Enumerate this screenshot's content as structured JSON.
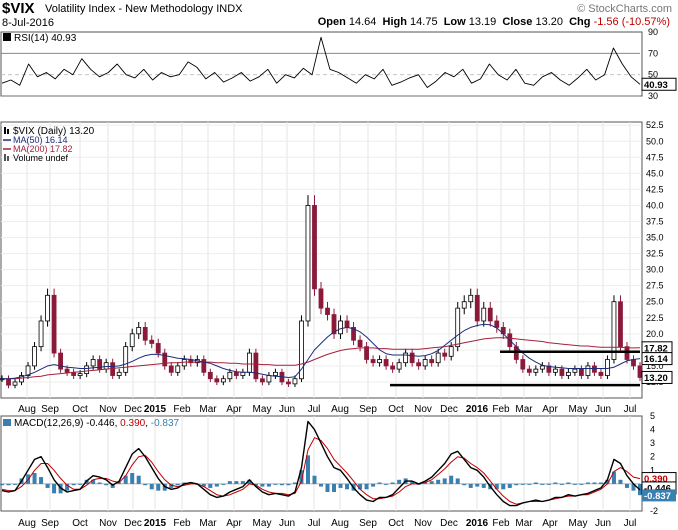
{
  "header": {
    "symbol": "$VIX",
    "name": "Volatility Index - New Methodology",
    "exchange": "INDX",
    "brand": "© StockCharts.com",
    "date": "8-Jul-2016",
    "open_label": "Open",
    "open": "14.64",
    "high_label": "High",
    "high": "14.75",
    "low_label": "Low",
    "low": "13.19",
    "close_label": "Close",
    "close": "13.20",
    "chg_label": "Chg",
    "chg": "-1.56 (-10.57%)"
  },
  "x_labels": [
    "Aug",
    "Sep",
    "Oct",
    "Nov",
    "Dec",
    "2015",
    "Feb",
    "Mar",
    "Apr",
    "May",
    "Jun",
    "Jul",
    "Aug",
    "Sep",
    "Oct",
    "Nov",
    "Dec",
    "2016",
    "Feb",
    "Mar",
    "Apr",
    "May",
    "Jun",
    "Jul"
  ],
  "colors": {
    "price_up": "#000000",
    "price_down": "#8b1a3a",
    "ma50": "#1c2d7a",
    "ma200": "#a5203c",
    "macd": "#000000",
    "signal": "#c00000",
    "histogram": "#3a7fb0",
    "rsi": "#000000"
  },
  "chart_data": [
    {
      "type": "line",
      "name": "rsi",
      "legend": "RSI(14) 40.93",
      "ylim": [
        30,
        90
      ],
      "y_ticks": [
        "90",
        "70",
        "50",
        "30"
      ],
      "reference_lines": [
        70,
        30
      ],
      "last_value": "40.93",
      "series": [
        {
          "values": [
            42,
            45,
            40,
            60,
            48,
            52,
            46,
            55,
            50,
            65,
            55,
            48,
            52,
            60,
            50,
            47,
            55,
            45,
            52,
            48,
            50,
            62,
            57,
            46,
            52,
            43,
            47,
            52,
            44,
            48,
            55,
            42,
            50,
            47,
            56,
            50,
            85,
            55,
            52,
            47,
            42,
            50,
            46,
            55,
            40,
            43,
            47,
            50,
            38,
            44,
            52,
            48,
            55,
            42,
            46,
            60,
            50,
            45,
            55,
            42,
            40,
            48,
            52,
            45,
            40,
            47,
            55,
            45,
            50,
            75,
            60,
            48,
            40.93
          ]
        }
      ]
    },
    {
      "type": "candlestick",
      "name": "price",
      "legend": [
        "$VIX (Daily) 13.20",
        "MA(50) 16.14",
        "MA(200) 17.82",
        "Volume undef"
      ],
      "ylim": [
        10,
        53
      ],
      "y_ticks": [
        "52.5",
        "50.0",
        "47.5",
        "45.0",
        "42.5",
        "40.0",
        "37.5",
        "35.0",
        "32.5",
        "30.0",
        "27.5",
        "25.0",
        "22.5",
        "20.0",
        "17.5",
        "15.0",
        "12.5"
      ],
      "last_labels": {
        "ma200": "17.82",
        "ma50": "16.14",
        "close": "13.20"
      },
      "series": [
        {
          "name": "close",
          "values": [
            13.0,
            12.0,
            12.5,
            13.5,
            15.0,
            18.0,
            22.0,
            26.0,
            17.0,
            14.5,
            14.0,
            13.5,
            13.8,
            15.0,
            16.0,
            14.5,
            15.5,
            13.5,
            14.0,
            18.0,
            20.0,
            21.0,
            19.0,
            18.5,
            17.0,
            15.0,
            14.0,
            15.0,
            16.0,
            15.5,
            16.0,
            14.0,
            13.0,
            12.5,
            13.0,
            14.0,
            13.5,
            14.0,
            17.0,
            13.0,
            12.5,
            13.5,
            14.0,
            12.5,
            12.2,
            13.0,
            22.0,
            40.0,
            27.0,
            24.0,
            23.0,
            20.0,
            22.0,
            21.0,
            19.0,
            18.0,
            16.0,
            15.5,
            16.0,
            15.0,
            14.5,
            15.5,
            17.0,
            15.5,
            15.0,
            16.0,
            15.5,
            17.0,
            16.5,
            18.0,
            24.0,
            25.0,
            26.0,
            22.0,
            24.0,
            22.0,
            21.0,
            20.0,
            18.0,
            16.0,
            14.5,
            14.0,
            14.5,
            15.0,
            14.0,
            14.5,
            13.5,
            14.0,
            14.5,
            13.5,
            15.0,
            14.0,
            13.5,
            16.0,
            25.0,
            18.0,
            16.0,
            15.0,
            13.2
          ]
        },
        {
          "name": "ma50",
          "values": [
            13.0,
            13.0,
            13.1,
            13.3,
            13.6,
            14.0,
            14.5,
            15.0,
            15.2,
            15.0,
            14.8,
            14.7,
            14.6,
            14.6,
            14.7,
            14.8,
            14.9,
            14.9,
            15.0,
            15.3,
            15.7,
            16.2,
            16.6,
            16.8,
            16.8,
            16.6,
            16.4,
            16.2,
            16.1,
            16.0,
            15.8,
            15.6,
            15.4,
            15.0,
            14.6,
            14.3,
            14.1,
            14.0,
            14.0,
            13.9,
            13.7,
            13.5,
            13.4,
            13.3,
            13.2,
            13.3,
            14.5,
            16.0,
            17.5,
            18.5,
            19.5,
            20.3,
            20.8,
            21.0,
            20.8,
            20.3,
            19.5,
            18.5,
            17.5,
            16.9,
            16.7,
            16.7,
            16.7,
            16.6,
            16.5,
            16.6,
            16.9,
            17.4,
            18.2,
            19.0,
            19.8,
            20.5,
            21.0,
            21.3,
            21.5,
            21.4,
            20.9,
            20.0,
            19.0,
            18.0,
            17.0,
            16.2,
            15.6,
            15.1,
            14.9,
            14.8,
            14.7,
            14.6,
            14.6,
            14.6,
            14.6,
            14.6,
            14.6,
            14.6,
            14.8,
            15.3,
            15.8,
            16.0,
            16.14
          ]
        },
        {
          "name": "ma200",
          "values": [
            13.0,
            13.0,
            13.0,
            13.1,
            13.2,
            13.3,
            13.4,
            13.6,
            13.7,
            13.8,
            13.9,
            14.0,
            14.1,
            14.2,
            14.3,
            14.4,
            14.5,
            14.6,
            14.7,
            14.8,
            14.9,
            15.0,
            15.1,
            15.2,
            15.3,
            15.4,
            15.5,
            15.5,
            15.6,
            15.6,
            15.6,
            15.6,
            15.6,
            15.5,
            15.5,
            15.4,
            15.4,
            15.3,
            15.3,
            15.3,
            15.2,
            15.2,
            15.1,
            15.1,
            15.1,
            15.1,
            15.3,
            15.6,
            16.0,
            16.4,
            16.8,
            17.1,
            17.4,
            17.6,
            17.7,
            17.8,
            17.8,
            17.8,
            17.7,
            17.7,
            17.6,
            17.6,
            17.6,
            17.6,
            17.6,
            17.7,
            17.8,
            17.9,
            18.0,
            18.2,
            18.4,
            18.6,
            18.8,
            19.0,
            19.2,
            19.3,
            19.4,
            19.4,
            19.3,
            19.2,
            19.1,
            19.0,
            18.9,
            18.8,
            18.6,
            18.5,
            18.4,
            18.3,
            18.2,
            18.1,
            18.1,
            18.0,
            17.9,
            17.9,
            17.9,
            17.9,
            17.8,
            17.8,
            17.82
          ]
        }
      ],
      "annotations": {
        "resistance": 17.2,
        "support": 12.0
      }
    },
    {
      "type": "line",
      "name": "macd",
      "legend": {
        "prefix": "MACD(12,26,9) ",
        "macd": "-0.446",
        "sep1": ", ",
        "signal": "0.390",
        "sep2": ", ",
        "hist": "-0.837"
      },
      "ylim": [
        -2,
        5
      ],
      "y_ticks": [
        "5",
        "4",
        "3",
        "2",
        "1",
        "0",
        "-1",
        "-2"
      ],
      "last_labels": {
        "signal": "0.390",
        "macd": "-0.446",
        "hist": "-0.837"
      },
      "series": [
        {
          "name": "macd",
          "values": [
            -0.5,
            -0.6,
            -0.5,
            0.2,
            1.0,
            1.8,
            2.0,
            1.2,
            0.3,
            -0.3,
            -0.6,
            -0.5,
            -0.4,
            0.2,
            0.6,
            0.5,
            0.3,
            -0.1,
            0.2,
            1.2,
            2.2,
            2.6,
            2.0,
            1.2,
            0.4,
            -0.2,
            -0.4,
            -0.3,
            0.0,
            0.1,
            0.0,
            -0.4,
            -0.8,
            -1.0,
            -0.9,
            -0.6,
            -0.4,
            -0.2,
            0.3,
            -0.2,
            -0.6,
            -0.8,
            -0.7,
            -0.8,
            -0.9,
            -0.6,
            1.2,
            4.6,
            4.0,
            3.0,
            2.0,
            1.2,
            1.0,
            0.4,
            -0.3,
            -0.8,
            -1.2,
            -1.3,
            -1.0,
            -1.0,
            -0.8,
            -0.3,
            0.2,
            0.2,
            0.0,
            0.2,
            0.5,
            1.0,
            1.5,
            2.2,
            2.4,
            1.8,
            1.2,
            1.0,
            0.5,
            -0.2,
            -0.8,
            -1.3,
            -1.6,
            -1.6,
            -1.4,
            -1.3,
            -1.2,
            -1.3,
            -1.2,
            -1.0,
            -1.0,
            -0.8,
            -0.9,
            -0.8,
            -0.7,
            -0.5,
            -0.3,
            0.3,
            1.8,
            1.5,
            0.6,
            0.0,
            -0.446
          ]
        },
        {
          "name": "signal",
          "values": [
            -0.4,
            -0.5,
            -0.5,
            -0.2,
            0.3,
            1.0,
            1.5,
            1.5,
            1.0,
            0.4,
            -0.1,
            -0.4,
            -0.4,
            -0.1,
            0.3,
            0.4,
            0.4,
            0.2,
            0.1,
            0.6,
            1.4,
            2.0,
            2.1,
            1.6,
            0.9,
            0.3,
            -0.1,
            -0.2,
            -0.1,
            0.0,
            0.0,
            -0.2,
            -0.5,
            -0.8,
            -0.9,
            -0.8,
            -0.6,
            -0.4,
            0.0,
            -0.1,
            -0.4,
            -0.6,
            -0.7,
            -0.7,
            -0.8,
            -0.7,
            0.2,
            2.5,
            3.4,
            3.2,
            2.6,
            1.8,
            1.3,
            0.8,
            0.2,
            -0.4,
            -0.8,
            -1.1,
            -1.1,
            -1.0,
            -0.9,
            -0.6,
            -0.2,
            0.0,
            0.0,
            0.1,
            0.3,
            0.7,
            1.1,
            1.6,
            2.0,
            1.9,
            1.5,
            1.2,
            0.8,
            0.2,
            -0.4,
            -0.9,
            -1.3,
            -1.5,
            -1.4,
            -1.3,
            -1.3,
            -1.3,
            -1.2,
            -1.1,
            -1.0,
            -0.9,
            -0.9,
            -0.8,
            -0.8,
            -0.6,
            -0.4,
            0.0,
            0.9,
            1.2,
            0.9,
            0.5,
            0.39
          ]
        }
      ]
    }
  ]
}
